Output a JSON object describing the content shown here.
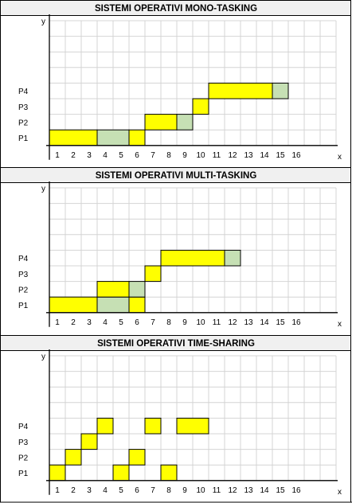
{
  "colors": {
    "running": "#ffff00",
    "waiting": "#c6e0b4",
    "grid": "#d4d4d4",
    "axis": "#000000",
    "title_bg": "#f0f0f0"
  },
  "chart_data": [
    {
      "type": "gantt",
      "title": "SISTEMI OPERATIVI MONO-TASKING",
      "xlabel": "x",
      "ylabel": "y",
      "x_ticks": [
        "1",
        "2",
        "3",
        "4",
        "5",
        "6",
        "7",
        "8",
        "9",
        "10",
        "11",
        "12",
        "13",
        "14",
        "15",
        "16"
      ],
      "rows": [
        "P1",
        "P2",
        "P3",
        "P4"
      ],
      "xlim": [
        0,
        18
      ],
      "grid": true,
      "bars": [
        {
          "row": "P1",
          "start": 0,
          "end": 3,
          "state": "running"
        },
        {
          "row": "P1",
          "start": 3,
          "end": 5,
          "state": "waiting"
        },
        {
          "row": "P1",
          "start": 5,
          "end": 6,
          "state": "running"
        },
        {
          "row": "P2",
          "start": 6,
          "end": 8,
          "state": "running"
        },
        {
          "row": "P2",
          "start": 8,
          "end": 9,
          "state": "waiting"
        },
        {
          "row": "P3",
          "start": 9,
          "end": 10,
          "state": "running"
        },
        {
          "row": "P4",
          "start": 10,
          "end": 14,
          "state": "running"
        },
        {
          "row": "P4",
          "start": 14,
          "end": 15,
          "state": "waiting"
        }
      ]
    },
    {
      "type": "gantt",
      "title": "SISTEMI OPERATIVI MULTI-TASKING",
      "xlabel": "x",
      "ylabel": "y",
      "x_ticks": [
        "1",
        "2",
        "3",
        "4",
        "5",
        "6",
        "7",
        "8",
        "9",
        "10",
        "11",
        "12",
        "13",
        "14",
        "15",
        "16"
      ],
      "rows": [
        "P1",
        "P2",
        "P3",
        "P4"
      ],
      "xlim": [
        0,
        18
      ],
      "grid": true,
      "bars": [
        {
          "row": "P1",
          "start": 0,
          "end": 3,
          "state": "running"
        },
        {
          "row": "P1",
          "start": 3,
          "end": 5,
          "state": "waiting"
        },
        {
          "row": "P1",
          "start": 5,
          "end": 6,
          "state": "running"
        },
        {
          "row": "P2",
          "start": 3,
          "end": 5,
          "state": "running"
        },
        {
          "row": "P2",
          "start": 5,
          "end": 6,
          "state": "waiting"
        },
        {
          "row": "P3",
          "start": 6,
          "end": 7,
          "state": "running"
        },
        {
          "row": "P4",
          "start": 7,
          "end": 11,
          "state": "running"
        },
        {
          "row": "P4",
          "start": 11,
          "end": 12,
          "state": "waiting"
        }
      ]
    },
    {
      "type": "gantt",
      "title": "SISTEMI OPERATIVI TIME-SHARING",
      "xlabel": "x",
      "ylabel": "y",
      "x_ticks": [
        "1",
        "2",
        "3",
        "4",
        "5",
        "6",
        "7",
        "8",
        "9",
        "10",
        "11",
        "12",
        "13",
        "14",
        "15",
        "16"
      ],
      "rows": [
        "P1",
        "P2",
        "P3",
        "P4"
      ],
      "xlim": [
        0,
        18
      ],
      "grid": true,
      "bars": [
        {
          "row": "P1",
          "start": 0,
          "end": 1,
          "state": "running"
        },
        {
          "row": "P2",
          "start": 1,
          "end": 2,
          "state": "running"
        },
        {
          "row": "P3",
          "start": 2,
          "end": 3,
          "state": "running"
        },
        {
          "row": "P4",
          "start": 3,
          "end": 4,
          "state": "running"
        },
        {
          "row": "P1",
          "start": 4,
          "end": 5,
          "state": "running"
        },
        {
          "row": "P2",
          "start": 5,
          "end": 6,
          "state": "running"
        },
        {
          "row": "P4",
          "start": 6,
          "end": 7,
          "state": "running"
        },
        {
          "row": "P1",
          "start": 7,
          "end": 8,
          "state": "running"
        },
        {
          "row": "P4",
          "start": 8,
          "end": 10,
          "state": "running"
        }
      ]
    }
  ]
}
